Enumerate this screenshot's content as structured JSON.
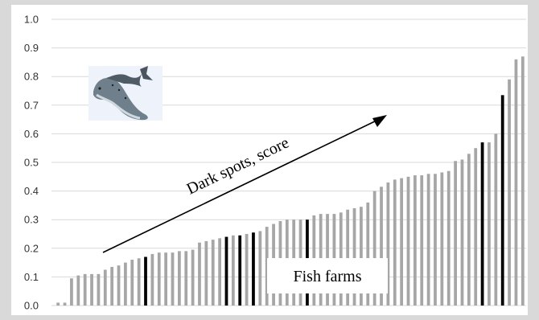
{
  "colors": {
    "background": "#d9d9d9",
    "plot_area": "#ffffff",
    "gridline": "#d9d9d9",
    "bar_gray": "#a6a6a6",
    "bar_black": "#000000",
    "text": "#333333"
  },
  "icons": {
    "fish_photo": "salmon-fish-icon"
  },
  "chart_data": {
    "type": "bar",
    "title": "",
    "xlabel": "",
    "ylabel": "",
    "ylim": [
      0,
      1.0
    ],
    "grid": true,
    "legend": "none",
    "yticks": [
      0.0,
      0.1,
      0.2,
      0.3,
      0.4,
      0.5,
      0.6,
      0.7,
      0.8,
      0.9,
      1.0
    ],
    "ytick_labels": [
      "0.0",
      "0.1",
      "0.2",
      "0.3",
      "0.4",
      "0.5",
      "0.6",
      "0.7",
      "0.8",
      "0.9",
      "1.0"
    ],
    "values": [
      0.01,
      0.01,
      0.095,
      0.105,
      0.11,
      0.11,
      0.11,
      0.125,
      0.135,
      0.14,
      0.15,
      0.16,
      0.165,
      0.17,
      0.18,
      0.185,
      0.185,
      0.185,
      0.19,
      0.19,
      0.195,
      0.22,
      0.225,
      0.23,
      0.235,
      0.24,
      0.245,
      0.245,
      0.25,
      0.255,
      0.26,
      0.275,
      0.285,
      0.295,
      0.3,
      0.3,
      0.3,
      0.3,
      0.315,
      0.32,
      0.32,
      0.32,
      0.325,
      0.335,
      0.34,
      0.345,
      0.36,
      0.4,
      0.415,
      0.43,
      0.44,
      0.445,
      0.45,
      0.455,
      0.455,
      0.46,
      0.46,
      0.465,
      0.47,
      0.505,
      0.51,
      0.53,
      0.55,
      0.57,
      0.57,
      0.6,
      0.735,
      0.79,
      0.86,
      0.87
    ],
    "highlighted_indices": [
      13,
      25,
      27,
      29,
      37,
      63,
      66
    ],
    "annotations": {
      "arrow_label": "Dark spots, score",
      "box_label": "Fish farms"
    }
  }
}
